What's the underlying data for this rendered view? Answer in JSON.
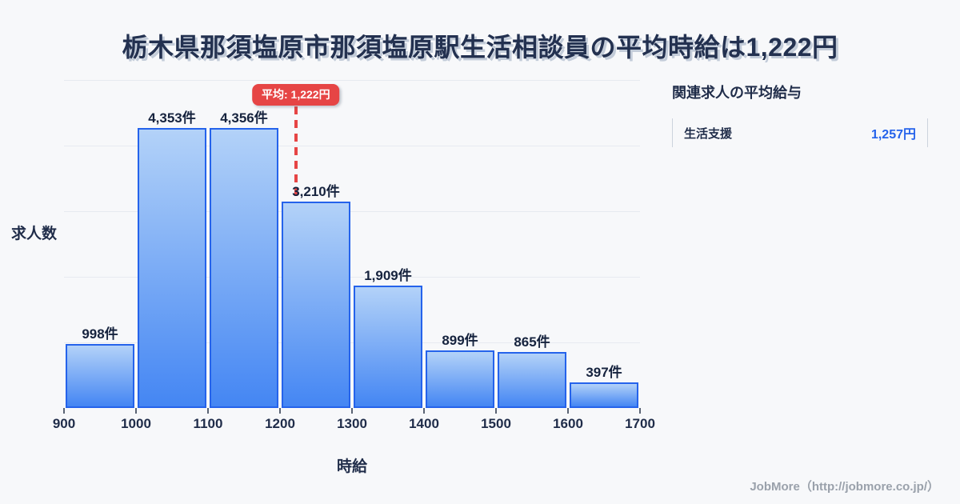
{
  "title": "栃木県那須塩原市那須塩原駅生活相談員の平均時給は1,222円",
  "chart_data": {
    "type": "bar",
    "subtype": "histogram",
    "title": "栃木県那須塩原市那須塩原駅生活相談員の平均時給は1,222円",
    "xlabel": "時給",
    "ylabel": "求人数",
    "bin_edges": [
      900,
      1000,
      1100,
      1200,
      1300,
      1400,
      1500,
      1600,
      1700
    ],
    "x_tick_labels": [
      "900",
      "1000",
      "1100",
      "1200",
      "1300",
      "1400",
      "1500",
      "1600",
      "1700"
    ],
    "values": [
      998,
      4353,
      4356,
      3210,
      1909,
      899,
      865,
      397
    ],
    "bar_labels": [
      "998件",
      "4,353件",
      "4,356件",
      "3,210件",
      "1,909件",
      "899件",
      "865件",
      "397件"
    ],
    "ylim": [
      0,
      5100
    ],
    "grid": true,
    "gridline_count": 5,
    "average_line": {
      "value": 1222,
      "label": "平均: 1,222円"
    },
    "colors": {
      "bar_fill_top": "#b3d2f8",
      "bar_fill_bottom": "#4486f3",
      "bar_border": "#2563eb",
      "average_red": "#e64545",
      "text_navy": "#1f2c49",
      "gridline": "#e7eaf0",
      "background": "#f7f8fa"
    }
  },
  "side_panel": {
    "heading": "関連求人の平均給与",
    "rows": [
      {
        "label": "生活支援",
        "value": "1,257円"
      }
    ],
    "value_color": "#2563eb"
  },
  "footer": {
    "credit": "JobMore（http://jobmore.co.jp/）"
  }
}
